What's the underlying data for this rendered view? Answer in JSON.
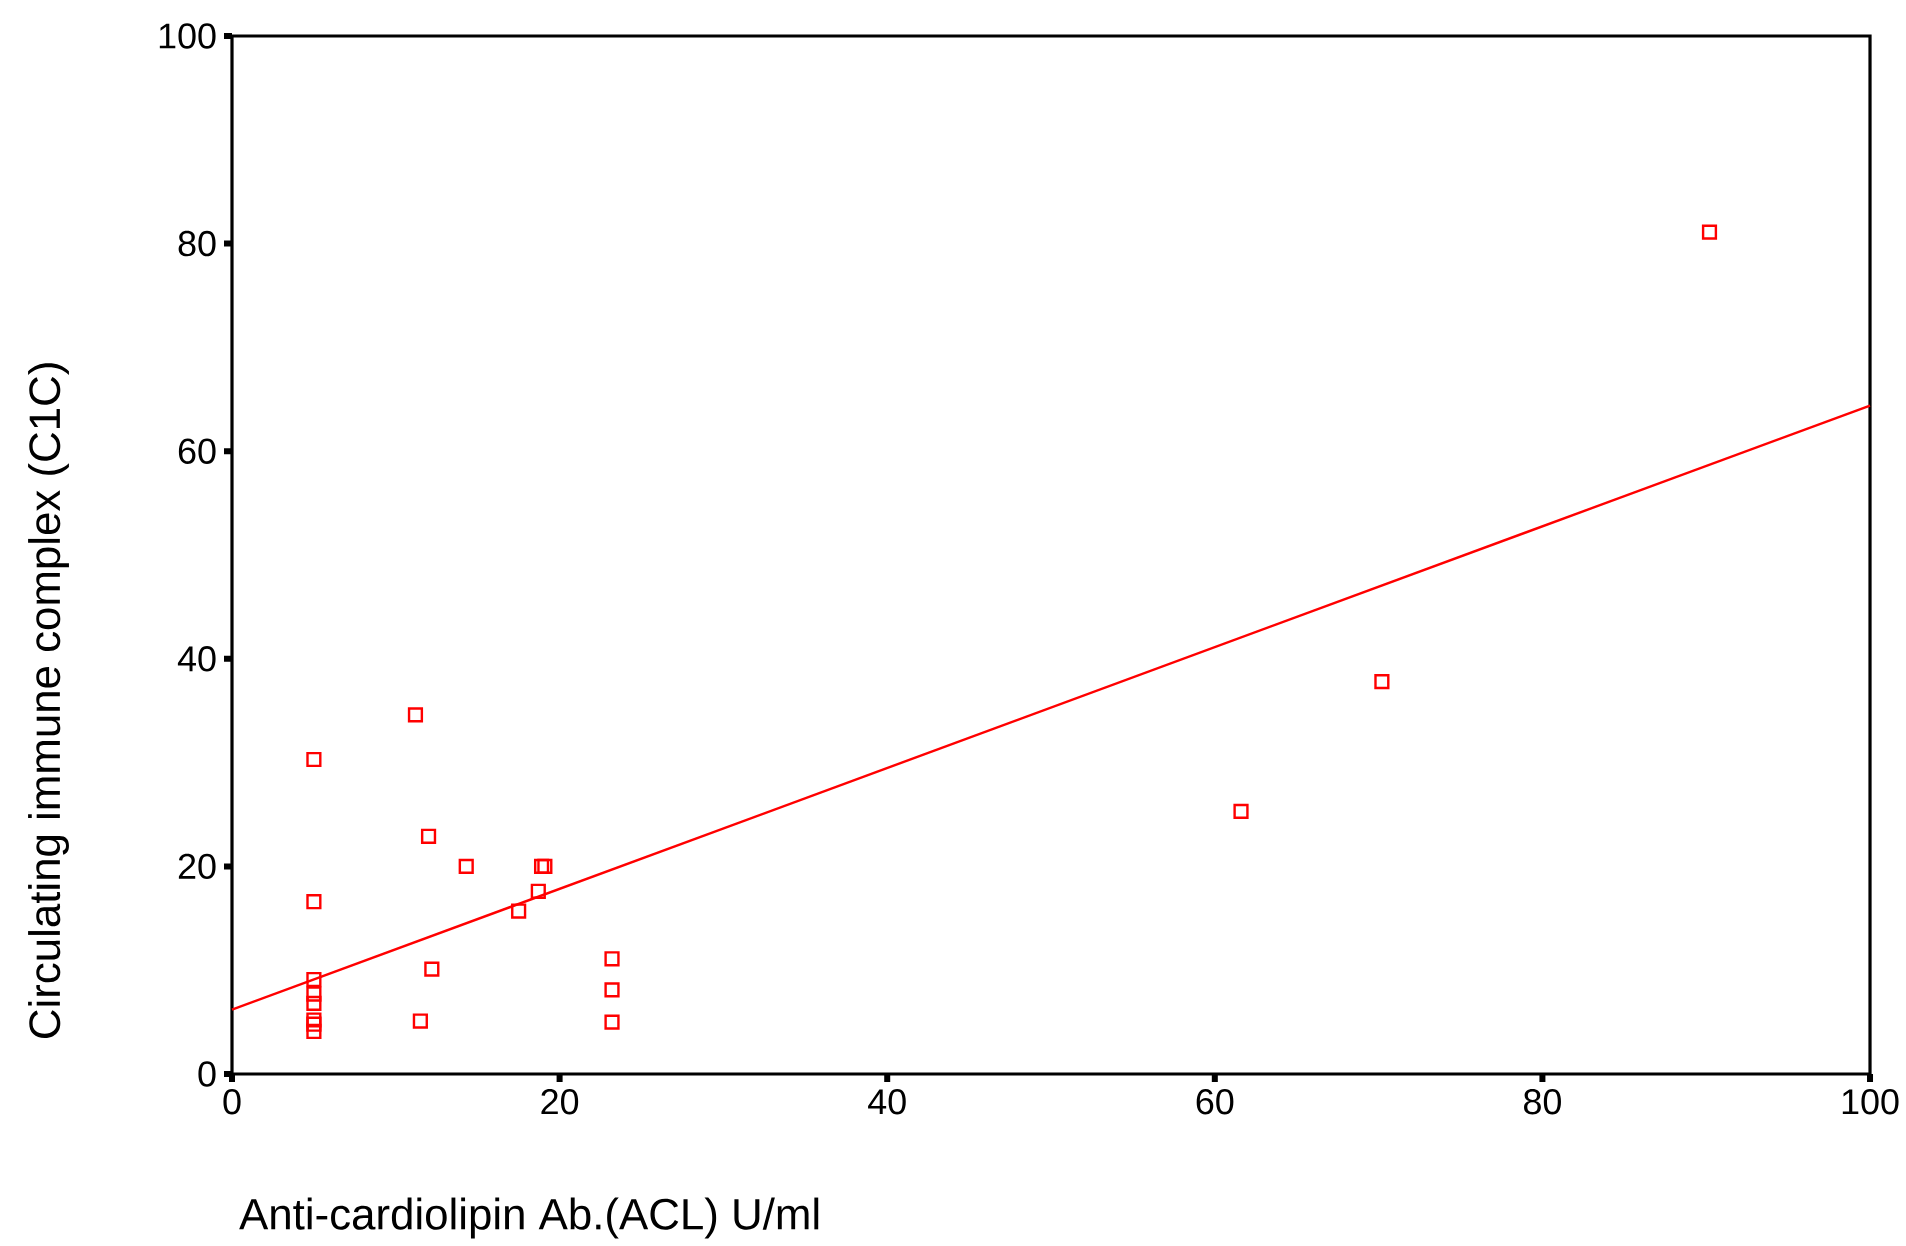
{
  "chart_data": {
    "type": "scatter",
    "xlabel": "Anti-cardiolipin Ab.(ACL) U/ml",
    "ylabel": "Circulating immune complex (C1C)",
    "xlim": [
      0,
      100
    ],
    "ylim": [
      0,
      100
    ],
    "xticks": [
      0,
      20,
      40,
      60,
      80,
      100
    ],
    "yticks": [
      0,
      20,
      40,
      60,
      80,
      100
    ],
    "grid": false,
    "marker": "square",
    "series": [
      {
        "color": "#ff0000",
        "x": [
          5.0,
          5.0,
          5.0,
          5.0,
          5.0,
          5.0,
          5.0,
          5.0,
          11.2,
          12.0,
          14.3,
          18.9,
          19.1,
          18.7,
          17.5,
          12.2,
          11.5,
          23.2,
          23.2,
          23.2,
          61.6,
          70.2,
          90.2
        ],
        "values": [
          30.3,
          16.6,
          9.1,
          7.7,
          6.8,
          5.2,
          4.8,
          4.1,
          34.6,
          22.9,
          20.0,
          20.0,
          20.0,
          17.6,
          15.7,
          10.1,
          5.1,
          11.1,
          8.1,
          5.0,
          25.3,
          37.8,
          81.1
        ]
      },
      {
        "type": "line",
        "color": "#ff0000",
        "marker": "none",
        "x": [
          0,
          100
        ],
        "values": [
          6.2,
          64.4
        ]
      }
    ]
  }
}
